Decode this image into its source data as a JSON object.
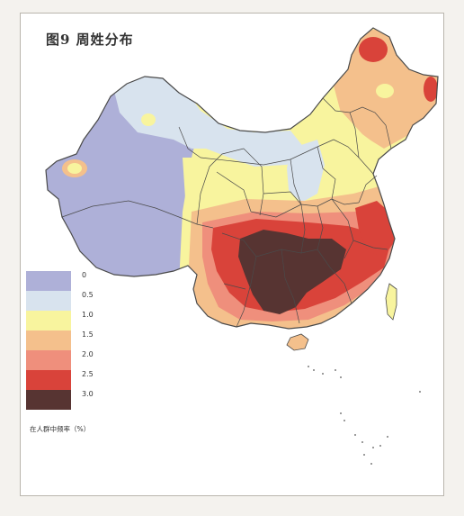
{
  "figure": {
    "title": "图9 周姓分布"
  },
  "legend": {
    "items": [
      {
        "label": "0",
        "color": "#aeb0d8"
      },
      {
        "label": "0.5",
        "color": "#d8e3ee"
      },
      {
        "label": "1.0",
        "color": "#f8f49e"
      },
      {
        "label": "1.5",
        "color": "#f4c08c"
      },
      {
        "label": "2.0",
        "color": "#ef8f7c"
      },
      {
        "label": "2.5",
        "color": "#d9433a"
      },
      {
        "label": "3.0",
        "color": "#573432"
      }
    ],
    "caption": "在人群中频率（%）"
  },
  "colors": {
    "border": "#4a4a4a",
    "sea_islands": "#555555"
  }
}
